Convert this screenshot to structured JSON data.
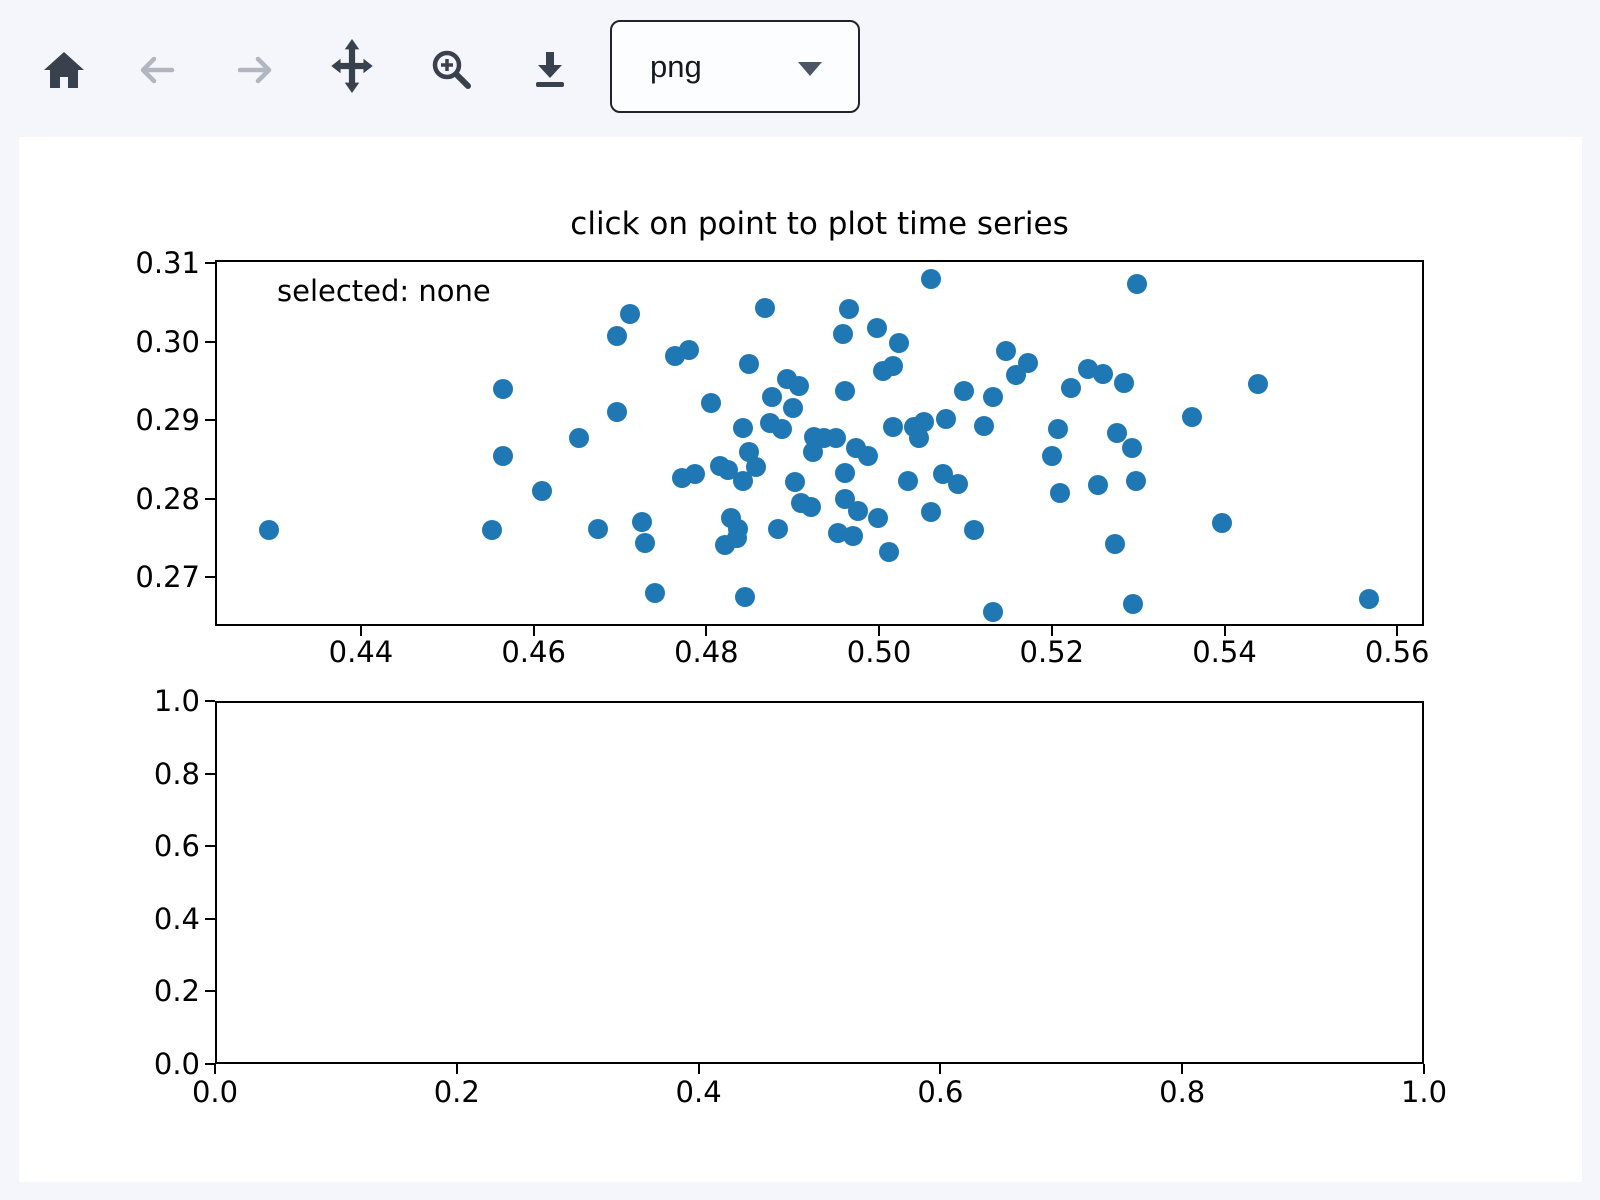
{
  "toolbar": {
    "buttons": [
      {
        "name": "home",
        "icon": "home-icon",
        "enabled": true
      },
      {
        "name": "back",
        "icon": "arrow-left-icon",
        "enabled": false
      },
      {
        "name": "forward",
        "icon": "arrow-right-icon",
        "enabled": false
      },
      {
        "name": "pan",
        "icon": "move-arrows-icon",
        "enabled": true
      },
      {
        "name": "zoom-to-rect",
        "icon": "magnifier-plus-icon",
        "enabled": true
      },
      {
        "name": "download",
        "icon": "download-icon",
        "enabled": true
      }
    ],
    "format_select": {
      "value": "png"
    }
  },
  "colors": {
    "marker": "#1f77b4",
    "icon_enabled": "#3a414e",
    "icon_disabled": "#b2b6c0",
    "page_background": "#f5f6fb",
    "figure_background": "#ffffff",
    "axes_line": "#000000"
  },
  "chart_data": [
    {
      "type": "scatter",
      "title": "click on point to plot time series",
      "annotation": "selected: none",
      "xlim": [
        0.4231,
        0.5631
      ],
      "ylim": [
        0.2638,
        0.3104
      ],
      "grid": false,
      "legend": "none",
      "x_ticks": [
        {
          "v": 0.44,
          "label": "0.44"
        },
        {
          "v": 0.46,
          "label": "0.46"
        },
        {
          "v": 0.48,
          "label": "0.48"
        },
        {
          "v": 0.5,
          "label": "0.50"
        },
        {
          "v": 0.52,
          "label": "0.52"
        },
        {
          "v": 0.54,
          "label": "0.54"
        },
        {
          "v": 0.56,
          "label": "0.56"
        }
      ],
      "y_ticks": [
        {
          "v": 0.27,
          "label": "0.27"
        },
        {
          "v": 0.28,
          "label": "0.28"
        },
        {
          "v": 0.29,
          "label": "0.29"
        },
        {
          "v": 0.3,
          "label": "0.30"
        },
        {
          "v": 0.31,
          "label": "0.31"
        }
      ],
      "points": [
        [
          0.4565,
          0.294
        ],
        [
          0.4565,
          0.2854
        ],
        [
          0.4293,
          0.276
        ],
        [
          0.4552,
          0.276
        ],
        [
          0.4712,
          0.3035
        ],
        [
          0.4697,
          0.3007
        ],
        [
          0.4764,
          0.2982
        ],
        [
          0.478,
          0.299
        ],
        [
          0.4868,
          0.3043
        ],
        [
          0.4849,
          0.2972
        ],
        [
          0.4893,
          0.2953
        ],
        [
          0.4907,
          0.2943
        ],
        [
          0.4876,
          0.2929
        ],
        [
          0.4805,
          0.2922
        ],
        [
          0.49,
          0.2916
        ],
        [
          0.4697,
          0.291
        ],
        [
          0.4842,
          0.289
        ],
        [
          0.4874,
          0.2896
        ],
        [
          0.4888,
          0.2889
        ],
        [
          0.4925,
          0.2879
        ],
        [
          0.4924,
          0.2859
        ],
        [
          0.4652,
          0.2878
        ],
        [
          0.4849,
          0.2859
        ],
        [
          0.4857,
          0.284
        ],
        [
          0.4816,
          0.2842
        ],
        [
          0.4825,
          0.2836
        ],
        [
          0.4787,
          0.2832
        ],
        [
          0.4772,
          0.2827
        ],
        [
          0.4842,
          0.2823
        ],
        [
          0.461,
          0.281
        ],
        [
          0.4903,
          0.2821
        ],
        [
          0.4909,
          0.2794
        ],
        [
          0.4921,
          0.2789
        ],
        [
          0.4828,
          0.2776
        ],
        [
          0.4726,
          0.277
        ],
        [
          0.4674,
          0.2762
        ],
        [
          0.4837,
          0.2762
        ],
        [
          0.4883,
          0.2762
        ],
        [
          0.4729,
          0.2744
        ],
        [
          0.4822,
          0.2741
        ],
        [
          0.4836,
          0.275
        ],
        [
          0.4741,
          0.268
        ],
        [
          0.4845,
          0.2675
        ],
        [
          0.506,
          0.308
        ],
        [
          0.4965,
          0.3042
        ],
        [
          0.4958,
          0.301
        ],
        [
          0.4998,
          0.3018
        ],
        [
          0.5023,
          0.2998
        ],
        [
          0.5147,
          0.2988
        ],
        [
          0.5172,
          0.2973
        ],
        [
          0.5158,
          0.2957
        ],
        [
          0.5005,
          0.2963
        ],
        [
          0.5016,
          0.2969
        ],
        [
          0.5222,
          0.2941
        ],
        [
          0.5242,
          0.2965
        ],
        [
          0.5259,
          0.2959
        ],
        [
          0.5284,
          0.2948
        ],
        [
          0.4961,
          0.2937
        ],
        [
          0.5098,
          0.2937
        ],
        [
          0.5132,
          0.2929
        ],
        [
          0.5077,
          0.2902
        ],
        [
          0.5121,
          0.2893
        ],
        [
          0.5016,
          0.2891
        ],
        [
          0.504,
          0.2892
        ],
        [
          0.5052,
          0.2898
        ],
        [
          0.5046,
          0.2877
        ],
        [
          0.5207,
          0.2889
        ],
        [
          0.5276,
          0.2884
        ],
        [
          0.4936,
          0.2877
        ],
        [
          0.495,
          0.2878
        ],
        [
          0.4973,
          0.2865
        ],
        [
          0.4987,
          0.2855
        ],
        [
          0.52,
          0.2854
        ],
        [
          0.4961,
          0.2833
        ],
        [
          0.5033,
          0.2823
        ],
        [
          0.5074,
          0.2832
        ],
        [
          0.5091,
          0.2819
        ],
        [
          0.521,
          0.2807
        ],
        [
          0.5253,
          0.2817
        ],
        [
          0.4961,
          0.28
        ],
        [
          0.4976,
          0.2785
        ],
        [
          0.506,
          0.2783
        ],
        [
          0.4999,
          0.2775
        ],
        [
          0.4952,
          0.2756
        ],
        [
          0.497,
          0.2753
        ],
        [
          0.511,
          0.276
        ],
        [
          0.5273,
          0.2743
        ],
        [
          0.5011,
          0.2732
        ],
        [
          0.5132,
          0.2656
        ],
        [
          0.5299,
          0.3073
        ],
        [
          0.5439,
          0.2946
        ],
        [
          0.5362,
          0.2904
        ],
        [
          0.5293,
          0.2864
        ],
        [
          0.5297,
          0.2822
        ],
        [
          0.5397,
          0.2769
        ],
        [
          0.5294,
          0.2666
        ],
        [
          0.5567,
          0.2672
        ]
      ]
    },
    {
      "type": "scatter",
      "title": "",
      "annotation": "",
      "xlim": [
        0.0,
        1.0
      ],
      "ylim": [
        0.0,
        1.0
      ],
      "grid": false,
      "legend": "none",
      "x_ticks": [
        {
          "v": 0.0,
          "label": "0.0"
        },
        {
          "v": 0.2,
          "label": "0.2"
        },
        {
          "v": 0.4,
          "label": "0.4"
        },
        {
          "v": 0.6,
          "label": "0.6"
        },
        {
          "v": 0.8,
          "label": "0.8"
        },
        {
          "v": 1.0,
          "label": "1.0"
        }
      ],
      "y_ticks": [
        {
          "v": 0.0,
          "label": "0.0"
        },
        {
          "v": 0.2,
          "label": "0.2"
        },
        {
          "v": 0.4,
          "label": "0.4"
        },
        {
          "v": 0.6,
          "label": "0.6"
        },
        {
          "v": 0.8,
          "label": "0.8"
        },
        {
          "v": 1.0,
          "label": "1.0"
        }
      ],
      "points": []
    }
  ]
}
